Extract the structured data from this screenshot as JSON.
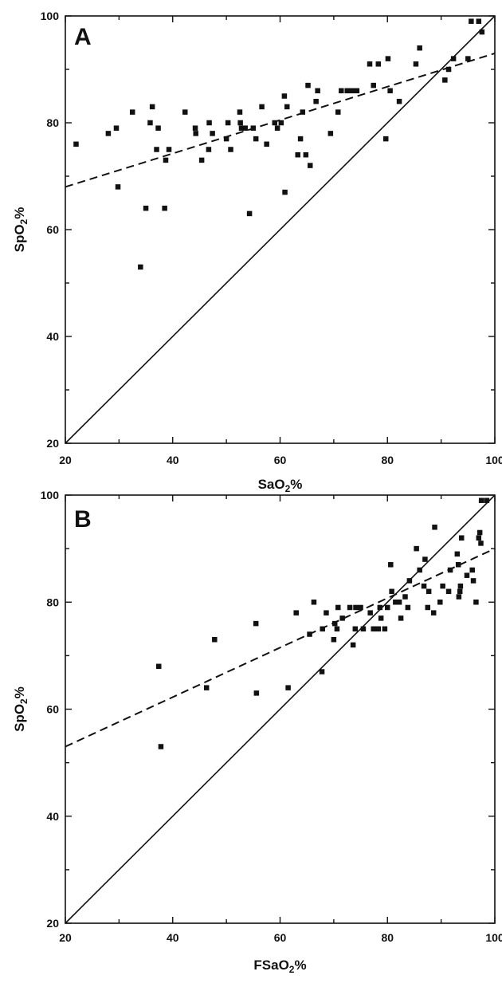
{
  "chart_data": [
    {
      "type": "scatter",
      "panel_label": "A",
      "xlabel_parts": [
        "SaO",
        "2",
        "%"
      ],
      "ylabel_parts": [
        "SpO",
        "2",
        "%"
      ],
      "xlim": [
        20,
        100
      ],
      "ylim": [
        20,
        100
      ],
      "xticks": [
        20,
        40,
        60,
        80,
        100
      ],
      "yticks": [
        20,
        40,
        60,
        80,
        100
      ],
      "grid": false,
      "identity_line": {
        "style": "solid",
        "from": [
          20,
          20
        ],
        "to": [
          100,
          100
        ]
      },
      "regression_line": {
        "style": "dashed",
        "from": [
          20,
          68
        ],
        "to": [
          100,
          93
        ]
      },
      "points": [
        [
          22,
          76
        ],
        [
          28,
          78
        ],
        [
          29.5,
          79
        ],
        [
          29.8,
          68
        ],
        [
          32.5,
          82
        ],
        [
          34,
          53
        ],
        [
          35,
          64
        ],
        [
          35.8,
          80
        ],
        [
          36.2,
          83
        ],
        [
          37,
          75
        ],
        [
          37.3,
          79
        ],
        [
          38.5,
          64
        ],
        [
          38.7,
          73
        ],
        [
          39.3,
          75
        ],
        [
          42.3,
          82
        ],
        [
          44.2,
          79
        ],
        [
          44.3,
          78
        ],
        [
          45.4,
          73
        ],
        [
          46.7,
          75
        ],
        [
          46.8,
          80
        ],
        [
          47.4,
          78
        ],
        [
          50,
          77
        ],
        [
          50.3,
          80
        ],
        [
          50.8,
          75
        ],
        [
          52.5,
          82
        ],
        [
          52.6,
          80
        ],
        [
          52.8,
          79
        ],
        [
          53.5,
          79
        ],
        [
          54.3,
          63
        ],
        [
          55,
          79
        ],
        [
          55.5,
          77
        ],
        [
          56.6,
          83
        ],
        [
          57.5,
          76
        ],
        [
          59,
          80
        ],
        [
          59.5,
          79
        ],
        [
          60.2,
          80
        ],
        [
          60.8,
          85
        ],
        [
          60.9,
          67
        ],
        [
          61.3,
          83
        ],
        [
          63.3,
          74
        ],
        [
          63.8,
          77
        ],
        [
          64.2,
          82
        ],
        [
          64.8,
          74
        ],
        [
          65.2,
          87
        ],
        [
          65.6,
          72
        ],
        [
          66.7,
          84
        ],
        [
          67,
          86
        ],
        [
          69.4,
          78
        ],
        [
          70.8,
          82
        ],
        [
          71.4,
          86
        ],
        [
          72.5,
          86
        ],
        [
          73.4,
          86
        ],
        [
          74.3,
          86
        ],
        [
          76.7,
          91
        ],
        [
          77.4,
          87
        ],
        [
          78.3,
          91
        ],
        [
          79.7,
          77
        ],
        [
          80.1,
          92
        ],
        [
          80.5,
          86
        ],
        [
          82.2,
          84
        ],
        [
          85.3,
          91
        ],
        [
          86,
          94
        ],
        [
          90.7,
          88
        ],
        [
          91.4,
          90
        ],
        [
          92.3,
          92
        ],
        [
          95,
          92
        ],
        [
          95.6,
          99
        ],
        [
          97,
          99
        ],
        [
          97.6,
          97
        ]
      ]
    },
    {
      "type": "scatter",
      "panel_label": "B",
      "xlabel_parts": [
        "FSaO",
        "2",
        "%"
      ],
      "ylabel_parts": [
        "SpO",
        "2",
        "%"
      ],
      "xlim": [
        20,
        100
      ],
      "ylim": [
        20,
        100
      ],
      "xticks": [
        20,
        40,
        60,
        80,
        100
      ],
      "yticks": [
        20,
        40,
        60,
        80,
        100
      ],
      "grid": false,
      "identity_line": {
        "style": "solid",
        "from": [
          20,
          20
        ],
        "to": [
          100,
          100
        ]
      },
      "regression_line": {
        "style": "dashed",
        "from": [
          20,
          53
        ],
        "to": [
          100,
          90
        ]
      },
      "points": [
        [
          37.4,
          68
        ],
        [
          37.8,
          53
        ],
        [
          46.3,
          64
        ],
        [
          47.8,
          73
        ],
        [
          55.5,
          76
        ],
        [
          55.6,
          63
        ],
        [
          61.5,
          64
        ],
        [
          63,
          78
        ],
        [
          65.5,
          74
        ],
        [
          66.3,
          80
        ],
        [
          67.8,
          67
        ],
        [
          67.9,
          75
        ],
        [
          68.6,
          78
        ],
        [
          70,
          73
        ],
        [
          70.2,
          76
        ],
        [
          70.6,
          75
        ],
        [
          70.8,
          79
        ],
        [
          71.6,
          77
        ],
        [
          73,
          79
        ],
        [
          73.6,
          72
        ],
        [
          74,
          75
        ],
        [
          74.1,
          79
        ],
        [
          75,
          79
        ],
        [
          75.5,
          75
        ],
        [
          76.8,
          78
        ],
        [
          77.4,
          75
        ],
        [
          78.3,
          75
        ],
        [
          78.6,
          79
        ],
        [
          78.8,
          77
        ],
        [
          79.5,
          75
        ],
        [
          80,
          79
        ],
        [
          80.6,
          87
        ],
        [
          80.8,
          82
        ],
        [
          81.5,
          80
        ],
        [
          82.2,
          80
        ],
        [
          82.5,
          77
        ],
        [
          83.3,
          81
        ],
        [
          83.8,
          79
        ],
        [
          84.1,
          84
        ],
        [
          85.4,
          90
        ],
        [
          86,
          86
        ],
        [
          86.8,
          83
        ],
        [
          87,
          88
        ],
        [
          87.5,
          79
        ],
        [
          87.7,
          82
        ],
        [
          88.6,
          78
        ],
        [
          88.8,
          94
        ],
        [
          89.8,
          80
        ],
        [
          90.3,
          83
        ],
        [
          91.4,
          82
        ],
        [
          91.7,
          86
        ],
        [
          93,
          89
        ],
        [
          93.2,
          87
        ],
        [
          93.3,
          81
        ],
        [
          93.5,
          82
        ],
        [
          93.6,
          83
        ],
        [
          93.8,
          92
        ],
        [
          94.8,
          85
        ],
        [
          95.8,
          86
        ],
        [
          96,
          84
        ],
        [
          96.5,
          80
        ],
        [
          97,
          92
        ],
        [
          97.2,
          93
        ],
        [
          97.4,
          91
        ],
        [
          97.5,
          99
        ],
        [
          98.5,
          99
        ]
      ]
    }
  ]
}
